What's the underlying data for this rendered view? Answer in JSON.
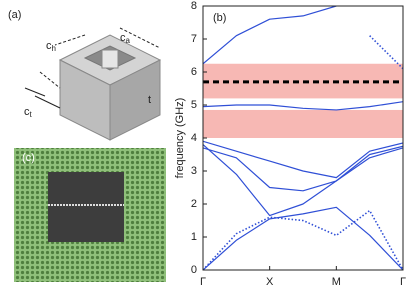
{
  "figure": {
    "panel_a": "(a)",
    "panel_c": "(c)",
    "cell_labels": [
      {
        "main": "c",
        "sub": "h"
      },
      {
        "main": "c",
        "sub": "a"
      },
      {
        "main": "t",
        "sub": null
      },
      {
        "main": "c",
        "sub": "t"
      }
    ]
  },
  "chart_data": {
    "type": "line",
    "title": "(b)",
    "y_label": "frequency (GHz)",
    "x": [
      0,
      0.5,
      1,
      1.5,
      2,
      2.5,
      3
    ],
    "xlim": [
      0,
      3
    ],
    "xticks": [
      {
        "value": 0,
        "label": "Γ"
      },
      {
        "value": 1,
        "label": "X"
      },
      {
        "value": 2,
        "label": "M"
      },
      {
        "value": 3,
        "label": "Γ"
      }
    ],
    "ylim": [
      0,
      8
    ],
    "yticks": [
      0,
      1,
      2,
      3,
      4,
      5,
      6,
      7,
      8
    ],
    "gaps": [
      [
        4.0,
        4.85
      ],
      [
        5.2,
        6.25
      ]
    ],
    "gap_color": "#f7b8b4",
    "dashed_line": 5.7,
    "series": [
      {
        "color": "#2f4fd6",
        "style": "solid",
        "values": [
          0,
          0.9,
          1.55,
          1.7,
          1.9,
          1.05,
          0
        ]
      },
      {
        "color": "#2f4fd6",
        "style": "dotted",
        "values": [
          0,
          1.1,
          1.6,
          1.5,
          1.05,
          1.8,
          0
        ]
      },
      {
        "color": "#2f4fd6",
        "style": "solid",
        "values": [
          3.8,
          2.9,
          1.65,
          2.0,
          2.7,
          3.4,
          3.7
        ]
      },
      {
        "color": "#2f4fd6",
        "style": "solid",
        "values": [
          3.7,
          3.4,
          2.5,
          2.4,
          2.7,
          3.5,
          3.75
        ]
      },
      {
        "color": "#2f4fd6",
        "style": "solid",
        "values": [
          3.9,
          3.6,
          3.3,
          3.0,
          2.8,
          3.6,
          3.85
        ]
      },
      {
        "color": "#2f4fd6",
        "style": "solid",
        "values": [
          4.95,
          5.0,
          5.0,
          4.9,
          4.85,
          4.95,
          5.1
        ]
      },
      {
        "color": "#2f4fd6",
        "style": "solid",
        "values": [
          6.25,
          7.1,
          7.6,
          7.7,
          8.0,
          null,
          null
        ]
      },
      {
        "color": "#2f4fd6",
        "style": "dotted",
        "values": [
          null,
          null,
          null,
          null,
          null,
          7.1,
          6.1
        ]
      }
    ]
  }
}
